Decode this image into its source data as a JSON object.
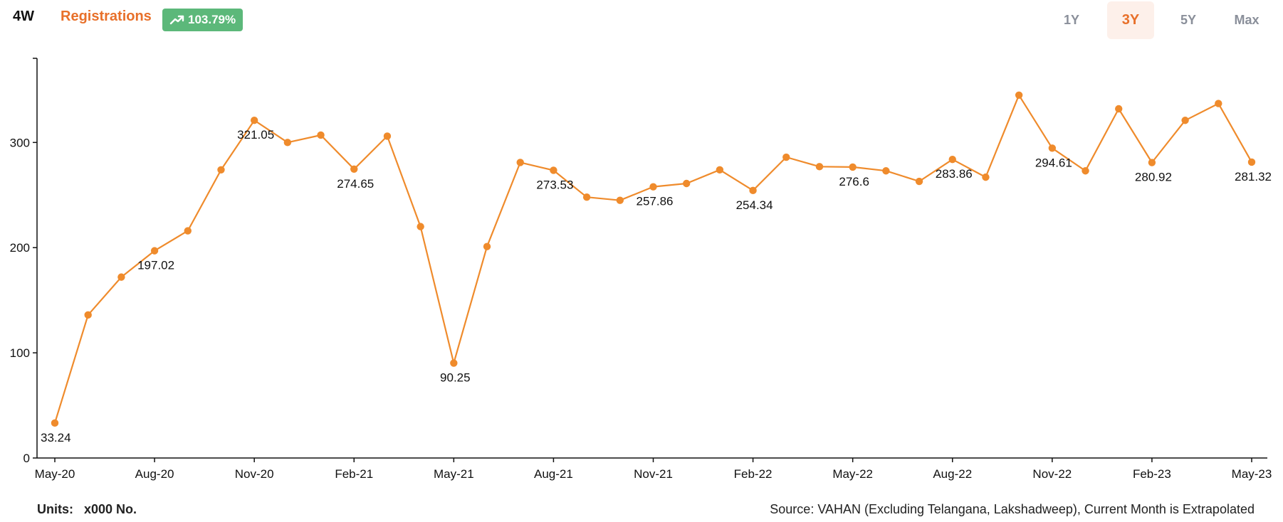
{
  "header": {
    "segment": "4W",
    "metric": "Registrations",
    "change": "103.79%",
    "ranges": [
      "1Y",
      "3Y",
      "5Y",
      "Max"
    ],
    "active_range": "3Y"
  },
  "colors": {
    "accent": "#e8702a",
    "line": "#ef8b2c",
    "badge": "#5cb87a"
  },
  "chart_data": {
    "type": "line",
    "ylim": [
      0,
      380
    ],
    "yticks": [
      0,
      100,
      200,
      300
    ],
    "x": [
      "May-20",
      "Jun-20",
      "Jul-20",
      "Aug-20",
      "Sep-20",
      "Oct-20",
      "Nov-20",
      "Dec-20",
      "Jan-21",
      "Feb-21",
      "Mar-21",
      "Apr-21",
      "May-21",
      "Jun-21",
      "Jul-21",
      "Aug-21",
      "Sep-21",
      "Oct-21",
      "Nov-21",
      "Dec-21",
      "Jan-22",
      "Feb-22",
      "Mar-22",
      "Apr-22",
      "May-22",
      "Jun-22",
      "Jul-22",
      "Aug-22",
      "Sep-22",
      "Oct-22",
      "Nov-22",
      "Dec-22",
      "Jan-23",
      "Feb-23",
      "Mar-23",
      "Apr-23",
      "May-23"
    ],
    "xtick_labels": [
      "May-20",
      "Aug-20",
      "Nov-20",
      "Feb-21",
      "May-21",
      "Aug-21",
      "Nov-21",
      "Feb-22",
      "May-22",
      "Aug-22",
      "Nov-22",
      "Feb-23",
      "May-23"
    ],
    "series": [
      {
        "values": [
          33.24,
          136,
          172,
          197.02,
          216,
          274,
          321.05,
          300,
          307,
          274.65,
          306,
          220,
          90.25,
          201,
          281,
          273.53,
          248,
          245,
          257.86,
          261,
          274,
          254.34,
          286,
          277,
          276.6,
          273,
          263,
          283.86,
          267,
          345,
          294.61,
          273,
          332,
          280.92,
          321,
          337,
          281.32
        ]
      }
    ],
    "labeled_points": [
      0,
      3,
      6,
      9,
      12,
      15,
      18,
      21,
      24,
      27,
      30,
      33,
      36
    ],
    "data_labels": [
      "33.24",
      "197.02",
      "321.05",
      "274.65",
      "90.25",
      "273.53",
      "257.86",
      "254.34",
      "276.6",
      "283.86",
      "294.61",
      "280.92",
      "281.32"
    ]
  },
  "footer": {
    "units_label": "Units:",
    "units_value": "x000 No.",
    "source": "Source: VAHAN (Excluding Telangana, Lakshadweep), Current Month is Extrapolated"
  }
}
